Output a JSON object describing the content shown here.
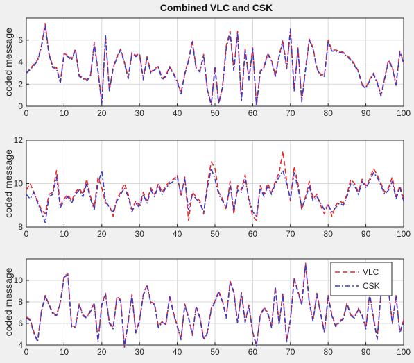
{
  "figure": {
    "title": "Combined VLC and CSK"
  },
  "chart_data": [
    {
      "type": "line",
      "title": "Combined VLC and CSK",
      "ylabel": "coded message",
      "xlim": [
        0,
        100
      ],
      "ylim": [
        0,
        8
      ],
      "xticks": [
        0,
        10,
        20,
        30,
        40,
        50,
        60,
        70,
        80,
        90,
        100
      ],
      "yticks": [
        0,
        2,
        4,
        6
      ],
      "grid": true,
      "series": [
        {
          "name": "VLC",
          "color": "#e8282a",
          "style": "dashed",
          "values": [
            3.0,
            3.4,
            3.8,
            4.2,
            5.5,
            7.5,
            4.8,
            3.6,
            3.5,
            2.2,
            4.8,
            4.6,
            4.3,
            5.2,
            2.8,
            2.6,
            2.4,
            2.8,
            5.8,
            3.2,
            0.3,
            6.2,
            1.5,
            3.5,
            4.5,
            5.2,
            4.0,
            2.6,
            4.9,
            4.6,
            4.8,
            2.5,
            4.5,
            3.1,
            3.4,
            3.6,
            2.5,
            2.8,
            3.6,
            3.0,
            2.3,
            1.2,
            3.0,
            4.2,
            6.0,
            3.5,
            3.2,
            4.7,
            1.5,
            0.2,
            3.6,
            0.3,
            1.8,
            5.5,
            6.8,
            3.3,
            6.8,
            0.5,
            5.2,
            2.5,
            5.3,
            0.1,
            3.2,
            3.6,
            4.8,
            4.2,
            2.8,
            4.6,
            6.0,
            3.5,
            6.8,
            1.5,
            5.3,
            0.5,
            3.4,
            6.1,
            5.3,
            3.5,
            2.9,
            2.8,
            6.0,
            5.1,
            5.1,
            5.0,
            4.9,
            4.6,
            4.3,
            3.8,
            3.2,
            2.0,
            1.7,
            2.4,
            3.0,
            2.2,
            1.0,
            2.6,
            4.2,
            3.6,
            2.0,
            5.0,
            4.0
          ]
        },
        {
          "name": "CSK",
          "color": "#3a3ac8",
          "style": "dashdot",
          "values": [
            3.0,
            3.3,
            3.7,
            4.1,
            5.4,
            7.3,
            4.7,
            3.5,
            3.4,
            2.1,
            4.7,
            4.5,
            4.2,
            5.1,
            2.7,
            2.5,
            2.3,
            2.7,
            5.6,
            3.1,
            0.2,
            6.4,
            1.4,
            3.4,
            4.4,
            5.1,
            3.9,
            2.5,
            4.8,
            4.5,
            4.7,
            2.4,
            4.4,
            3.0,
            3.3,
            3.5,
            2.4,
            2.7,
            3.5,
            2.9,
            2.2,
            1.1,
            2.9,
            4.1,
            5.8,
            3.4,
            3.1,
            4.6,
            1.4,
            0.1,
            3.5,
            0.2,
            1.7,
            5.3,
            6.6,
            3.2,
            6.6,
            0.4,
            5.1,
            2.4,
            5.2,
            0.0,
            3.1,
            3.5,
            4.7,
            4.1,
            2.7,
            4.5,
            5.8,
            3.4,
            7.0,
            1.4,
            5.2,
            0.4,
            3.3,
            6.0,
            5.2,
            3.4,
            2.8,
            2.7,
            5.8,
            5.0,
            5.0,
            4.9,
            4.8,
            4.5,
            4.2,
            3.7,
            3.1,
            1.9,
            1.6,
            2.3,
            2.9,
            2.1,
            0.9,
            2.5,
            4.1,
            3.5,
            1.9,
            4.9,
            3.9
          ]
        }
      ]
    },
    {
      "type": "line",
      "ylabel": "coded message",
      "xlim": [
        0,
        100
      ],
      "ylim": [
        8,
        12
      ],
      "xticks": [
        0,
        10,
        20,
        30,
        40,
        50,
        60,
        70,
        80,
        90,
        100
      ],
      "yticks": [
        8,
        10,
        12
      ],
      "grid": true,
      "series": [
        {
          "name": "VLC",
          "color": "#e8282a",
          "style": "dashed",
          "values": [
            9.7,
            10.0,
            9.6,
            9.2,
            8.8,
            8.6,
            9.5,
            9.6,
            10.6,
            9.0,
            9.3,
            9.5,
            9.2,
            9.6,
            9.8,
            9.5,
            10.2,
            9.4,
            8.9,
            10.3,
            9.8,
            9.1,
            9.0,
            8.5,
            9.3,
            9.6,
            10.0,
            9.5,
            8.8,
            9.2,
            9.0,
            9.6,
            9.2,
            9.8,
            9.5,
            10.0,
            9.6,
            9.9,
            10.1,
            10.2,
            10.4,
            9.4,
            10.3,
            8.3,
            9.6,
            9.4,
            9.2,
            8.6,
            10.0,
            11.0,
            10.7,
            9.6,
            9.3,
            8.8,
            10.1,
            8.6,
            9.9,
            9.7,
            10.4,
            9.2,
            8.5,
            8.3,
            9.9,
            9.5,
            10.0,
            9.6,
            10.1,
            10.5,
            11.5,
            10.1,
            9.2,
            10.8,
            10.0,
            8.8,
            9.4,
            10.1,
            9.3,
            9.5,
            9.0,
            8.6,
            9.1,
            8.5,
            9.0,
            9.2,
            9.1,
            9.5,
            10.2,
            10.0,
            9.6,
            10.2,
            9.9,
            10.2,
            10.7,
            10.4,
            10.0,
            9.6,
            9.8,
            10.3,
            9.4,
            9.9,
            9.3
          ]
        },
        {
          "name": "CSK",
          "color": "#3a3ac8",
          "style": "dashdot",
          "values": [
            9.5,
            9.3,
            9.6,
            9.1,
            8.7,
            8.2,
            9.4,
            9.5,
            10.3,
            8.9,
            9.2,
            9.4,
            9.1,
            9.5,
            9.7,
            9.4,
            10.0,
            9.3,
            8.8,
            10.0,
            10.6,
            9.2,
            8.9,
            8.7,
            9.2,
            9.5,
            9.8,
            9.4,
            8.7,
            9.1,
            8.9,
            9.5,
            9.1,
            9.7,
            9.4,
            9.9,
            9.5,
            9.8,
            10.0,
            10.1,
            10.3,
            9.5,
            10.2,
            8.8,
            9.5,
            9.3,
            9.1,
            8.7,
            9.8,
            10.7,
            10.2,
            9.5,
            9.2,
            8.9,
            9.9,
            8.8,
            9.7,
            9.6,
            10.2,
            9.3,
            8.7,
            8.5,
            9.8,
            9.4,
            9.9,
            9.5,
            10.0,
            10.3,
            10.6,
            10.0,
            9.3,
            10.5,
            9.8,
            8.9,
            9.3,
            9.9,
            9.2,
            9.4,
            9.1,
            8.8,
            9.0,
            8.7,
            8.9,
            9.1,
            9.0,
            9.4,
            10.0,
            9.9,
            9.5,
            10.1,
            9.8,
            10.1,
            10.5,
            10.3,
            9.9,
            9.5,
            9.7,
            10.1,
            9.3,
            9.8,
            9.2
          ]
        }
      ]
    },
    {
      "type": "line",
      "ylabel": "coded message",
      "xlim": [
        0,
        100
      ],
      "ylim": [
        4,
        12
      ],
      "xticks": [
        0,
        10,
        20,
        30,
        40,
        50,
        60,
        70,
        80,
        90,
        100
      ],
      "yticks": [
        4,
        6,
        8,
        10
      ],
      "grid": true,
      "legend": {
        "position": "top-right",
        "entries": [
          "VLC",
          "CSK"
        ]
      },
      "series": [
        {
          "name": "VLC",
          "color": "#e8282a",
          "style": "dashed",
          "values": [
            6.6,
            6.4,
            5.2,
            4.4,
            7.2,
            8.6,
            7.8,
            7.0,
            6.8,
            8.0,
            10.4,
            10.6,
            5.8,
            5.7,
            7.8,
            6.8,
            6.6,
            7.2,
            7.9,
            4.4,
            7.8,
            8.8,
            6.1,
            5.6,
            8.5,
            8.2,
            3.9,
            6.2,
            8.7,
            5.2,
            6.3,
            8.7,
            9.6,
            8.0,
            7.8,
            5.7,
            6.2,
            6.0,
            8.6,
            7.0,
            5.8,
            4.6,
            7.8,
            6.6,
            5.0,
            7.6,
            6.6,
            4.6,
            5.2,
            7.4,
            8.1,
            9.0,
            8.1,
            6.6,
            9.9,
            9.0,
            6.1,
            8.9,
            6.2,
            7.7,
            5.2,
            4.0,
            6.8,
            7.5,
            7.0,
            5.7,
            9.4,
            6.0,
            8.8,
            4.4,
            6.4,
            10.2,
            9.0,
            7.8,
            11.6,
            8.0,
            6.3,
            8.8,
            7.0,
            5.2,
            8.6,
            6.8,
            5.8,
            6.2,
            6.5,
            7.9,
            6.8,
            6.6,
            7.4,
            6.8,
            5.6,
            8.8,
            6.6,
            4.6,
            8.9,
            11.4,
            9.2,
            6.1,
            8.6,
            5.2,
            6.3
          ]
        },
        {
          "name": "CSK",
          "color": "#3a3ac8",
          "style": "dashdot",
          "values": [
            6.5,
            6.3,
            5.1,
            4.3,
            7.1,
            8.5,
            7.7,
            6.9,
            6.7,
            7.9,
            10.3,
            10.5,
            5.7,
            5.6,
            7.7,
            6.7,
            6.5,
            7.1,
            7.8,
            4.3,
            7.7,
            8.7,
            6.0,
            5.5,
            8.4,
            8.1,
            3.8,
            6.1,
            8.6,
            5.1,
            6.2,
            8.6,
            9.5,
            7.9,
            7.7,
            5.6,
            6.1,
            5.9,
            8.5,
            6.9,
            5.7,
            4.5,
            7.7,
            6.5,
            4.9,
            7.5,
            6.5,
            4.5,
            5.1,
            7.3,
            8.0,
            8.9,
            8.0,
            6.5,
            9.8,
            8.9,
            6.0,
            8.8,
            6.1,
            7.6,
            5.1,
            3.9,
            6.7,
            7.4,
            6.9,
            5.6,
            9.3,
            5.9,
            8.7,
            4.3,
            6.3,
            10.1,
            8.9,
            7.7,
            11.5,
            7.9,
            6.2,
            8.7,
            6.9,
            5.1,
            8.5,
            6.7,
            5.7,
            6.1,
            6.4,
            7.8,
            6.7,
            6.5,
            7.3,
            6.7,
            5.5,
            8.7,
            6.5,
            4.5,
            8.8,
            11.3,
            9.1,
            6.0,
            8.5,
            5.1,
            6.2
          ]
        }
      ]
    }
  ]
}
